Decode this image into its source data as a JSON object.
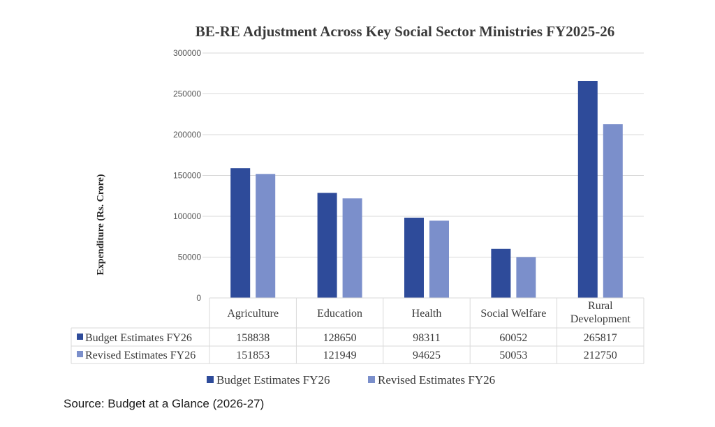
{
  "chart_data": {
    "type": "bar",
    "title": "BE-RE Adjustment Across Key Social Sector Ministries FY2025-26",
    "xlabel": "",
    "ylabel": "Expenditure (Rs. Crore)",
    "ylim": [
      0,
      300000
    ],
    "yticks": [
      "0",
      "50000",
      "100000",
      "150000",
      "200000",
      "250000",
      "300000"
    ],
    "ytick_values": [
      0,
      50000,
      100000,
      150000,
      200000,
      250000,
      300000
    ],
    "grid": true,
    "categories": [
      "Agriculture",
      "Education",
      "Health",
      "Social Welfare",
      "Rural Development"
    ],
    "category_lines": [
      [
        "Agriculture"
      ],
      [
        "Education"
      ],
      [
        "Health"
      ],
      [
        "Social Welfare"
      ],
      [
        "Rural",
        "Development"
      ]
    ],
    "series": [
      {
        "name": "Budget Estimates FY26",
        "color": "#2e4b9a",
        "values": [
          158838,
          128650,
          98311,
          60052,
          265817
        ]
      },
      {
        "name": "Revised Estimates FY26",
        "color": "#7b8fcb",
        "values": [
          151853,
          121949,
          94625,
          50053,
          212750
        ]
      }
    ],
    "data_table": true,
    "legend_position": "bottom"
  },
  "source": "Source: Budget at a Glance (2026-27)"
}
